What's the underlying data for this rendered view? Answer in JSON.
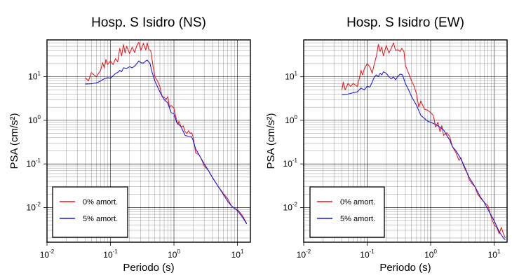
{
  "chart_data": [
    {
      "type": "line",
      "title": "Hosp. S Isidro (NS)",
      "xlabel": "Periodo (s)",
      "ylabel": "PSA (cm/s²)",
      "xscale": "log",
      "yscale": "log",
      "xlim": [
        0.01,
        16
      ],
      "ylim": [
        0.0016,
        70
      ],
      "grid": true,
      "legend_position": "bottom-left",
      "x_ticks": [
        "10⁻²",
        "10⁻¹",
        "10⁰",
        "10¹"
      ],
      "y_ticks": [
        "10⁻²",
        "10⁻¹",
        "10⁰",
        "10¹"
      ],
      "series": [
        {
          "name": "0% amort.",
          "color": "#e8161c",
          "points": [
            [
              0.04,
              9.5
            ],
            [
              0.045,
              8.0
            ],
            [
              0.05,
              12.5
            ],
            [
              0.055,
              11.0
            ],
            [
              0.06,
              10.0
            ],
            [
              0.065,
              12.0
            ],
            [
              0.07,
              14.0
            ],
            [
              0.075,
              21.0
            ],
            [
              0.08,
              16.0
            ],
            [
              0.085,
              25.0
            ],
            [
              0.09,
              19.0
            ],
            [
              0.1,
              23.0
            ],
            [
              0.11,
              19.0
            ],
            [
              0.12,
              26.0
            ],
            [
              0.13,
              22.0
            ],
            [
              0.14,
              45.0
            ],
            [
              0.15,
              30.0
            ],
            [
              0.16,
              55.0
            ],
            [
              0.17,
              35.0
            ],
            [
              0.18,
              50.0
            ],
            [
              0.2,
              34.0
            ],
            [
              0.22,
              48.0
            ],
            [
              0.24,
              36.0
            ],
            [
              0.26,
              52.0
            ],
            [
              0.28,
              62.0
            ],
            [
              0.3,
              40.0
            ],
            [
              0.33,
              58.0
            ],
            [
              0.36,
              41.0
            ],
            [
              0.38,
              60.0
            ],
            [
              0.4,
              42.0
            ],
            [
              0.43,
              40.0
            ],
            [
              0.47,
              17.0
            ],
            [
              0.5,
              10.0
            ],
            [
              0.55,
              8.0
            ],
            [
              0.6,
              6.0
            ],
            [
              0.65,
              3.5
            ],
            [
              0.7,
              3.4
            ],
            [
              0.75,
              3.0
            ],
            [
              0.8,
              3.5
            ],
            [
              0.85,
              2.0
            ],
            [
              0.9,
              2.2
            ],
            [
              1.0,
              1.9
            ],
            [
              1.1,
              1.0
            ],
            [
              1.15,
              0.8
            ],
            [
              1.2,
              0.95
            ],
            [
              1.3,
              0.7
            ],
            [
              1.4,
              0.75
            ],
            [
              1.5,
              0.55
            ],
            [
              1.6,
              0.5
            ],
            [
              1.7,
              0.58
            ],
            [
              1.8,
              0.5
            ],
            [
              1.9,
              0.52
            ],
            [
              2.0,
              0.42
            ],
            [
              2.2,
              0.18
            ],
            [
              2.5,
              0.16
            ],
            [
              2.7,
              0.13
            ],
            [
              3.0,
              0.09
            ],
            [
              3.5,
              0.07
            ],
            [
              4.0,
              0.05
            ],
            [
              5.0,
              0.03
            ],
            [
              6.0,
              0.021
            ],
            [
              7.0,
              0.016
            ],
            [
              8.0,
              0.011
            ],
            [
              9.0,
              0.0095
            ],
            [
              10.0,
              0.009
            ],
            [
              12.0,
              0.0065
            ],
            [
              14.0,
              0.0043
            ]
          ]
        },
        {
          "name": "5% amort.",
          "color": "#1515e6",
          "points": [
            [
              0.04,
              6.8
            ],
            [
              0.05,
              6.9
            ],
            [
              0.06,
              7.2
            ],
            [
              0.07,
              8.0
            ],
            [
              0.08,
              9.0
            ],
            [
              0.09,
              9.5
            ],
            [
              0.1,
              9.3
            ],
            [
              0.11,
              10.5
            ],
            [
              0.12,
              12.0
            ],
            [
              0.13,
              12.5
            ],
            [
              0.14,
              14.0
            ],
            [
              0.15,
              13.0
            ],
            [
              0.16,
              16.0
            ],
            [
              0.18,
              15.5
            ],
            [
              0.2,
              17.0
            ],
            [
              0.22,
              16.0
            ],
            [
              0.24,
              17.5
            ],
            [
              0.26,
              20.0
            ],
            [
              0.28,
              23.0
            ],
            [
              0.3,
              21.0
            ],
            [
              0.33,
              20.5
            ],
            [
              0.36,
              23.0
            ],
            [
              0.38,
              24.0
            ],
            [
              0.42,
              20.0
            ],
            [
              0.45,
              13.0
            ],
            [
              0.5,
              8.0
            ],
            [
              0.6,
              4.5
            ],
            [
              0.7,
              3.0
            ],
            [
              0.8,
              2.5
            ],
            [
              0.9,
              1.5
            ],
            [
              1.0,
              1.4
            ],
            [
              1.1,
              0.9
            ],
            [
              1.2,
              0.8
            ],
            [
              1.3,
              0.7
            ],
            [
              1.5,
              0.45
            ],
            [
              1.7,
              0.43
            ],
            [
              1.9,
              0.42
            ],
            [
              2.0,
              0.35
            ],
            [
              2.2,
              0.22
            ],
            [
              2.5,
              0.16
            ],
            [
              3.0,
              0.1
            ],
            [
              3.5,
              0.07
            ],
            [
              4.0,
              0.05
            ],
            [
              5.0,
              0.03
            ],
            [
              6.0,
              0.02
            ],
            [
              7.0,
              0.014
            ],
            [
              8.0,
              0.011
            ],
            [
              10.0,
              0.0085
            ],
            [
              12.0,
              0.006
            ],
            [
              14.0,
              0.0042
            ]
          ]
        }
      ]
    },
    {
      "type": "line",
      "title": "Hosp. S Isidro (EW)",
      "xlabel": "Periodo (s)",
      "ylabel": "PSA (cm/s²)",
      "xscale": "log",
      "yscale": "log",
      "xlim": [
        0.01,
        16
      ],
      "ylim": [
        0.0016,
        70
      ],
      "grid": true,
      "legend_position": "bottom-left",
      "x_ticks": [
        "10⁻²",
        "10⁻¹",
        "10⁰",
        "10¹"
      ],
      "y_ticks": [
        "10⁻²",
        "10⁻¹",
        "10⁰",
        "10¹"
      ],
      "series": [
        {
          "name": "0% amort.",
          "color": "#e8161c",
          "points": [
            [
              0.04,
              5.0
            ],
            [
              0.042,
              7.5
            ],
            [
              0.045,
              5.0
            ],
            [
              0.05,
              7.0
            ],
            [
              0.055,
              6.0
            ],
            [
              0.06,
              7.0
            ],
            [
              0.065,
              6.5
            ],
            [
              0.07,
              6.0
            ],
            [
              0.075,
              9.0
            ],
            [
              0.08,
              14.0
            ],
            [
              0.085,
              11.0
            ],
            [
              0.09,
              15.0
            ],
            [
              0.1,
              20.0
            ],
            [
              0.11,
              17.0
            ],
            [
              0.12,
              12.0
            ],
            [
              0.13,
              20.0
            ],
            [
              0.14,
              30.0
            ],
            [
              0.15,
              55.0
            ],
            [
              0.16,
              38.0
            ],
            [
              0.17,
              48.0
            ],
            [
              0.18,
              30.0
            ],
            [
              0.2,
              52.0
            ],
            [
              0.22,
              35.0
            ],
            [
              0.24,
              45.0
            ],
            [
              0.26,
              60.0
            ],
            [
              0.28,
              40.0
            ],
            [
              0.3,
              42.0
            ],
            [
              0.33,
              38.0
            ],
            [
              0.35,
              45.0
            ],
            [
              0.38,
              38.0
            ],
            [
              0.4,
              18.0
            ],
            [
              0.45,
              12.0
            ],
            [
              0.5,
              8.0
            ],
            [
              0.55,
              6.0
            ],
            [
              0.6,
              4.0
            ],
            [
              0.65,
              2.0
            ],
            [
              0.7,
              2.8
            ],
            [
              0.75,
              2.2
            ],
            [
              0.8,
              1.8
            ],
            [
              0.9,
              1.7
            ],
            [
              1.0,
              1.5
            ],
            [
              1.1,
              1.3
            ],
            [
              1.2,
              0.7
            ],
            [
              1.3,
              0.9
            ],
            [
              1.4,
              0.55
            ],
            [
              1.5,
              0.75
            ],
            [
              1.6,
              0.45
            ],
            [
              1.8,
              0.52
            ],
            [
              2.0,
              0.42
            ],
            [
              2.2,
              0.25
            ],
            [
              2.5,
              0.18
            ],
            [
              2.8,
              0.12
            ],
            [
              3.0,
              0.14
            ],
            [
              3.3,
              0.09
            ],
            [
              3.5,
              0.075
            ],
            [
              3.8,
              0.06
            ],
            [
              4.0,
              0.045
            ],
            [
              4.5,
              0.035
            ],
            [
              5.0,
              0.03
            ],
            [
              5.5,
              0.02
            ],
            [
              6.0,
              0.017
            ],
            [
              7.0,
              0.013
            ],
            [
              8.0,
              0.011
            ],
            [
              9.0,
              0.006
            ],
            [
              10.0,
              0.004
            ],
            [
              11.0,
              0.0035
            ],
            [
              12.0,
              0.0025
            ],
            [
              13.0,
              0.0035
            ],
            [
              14.0,
              0.0025
            ],
            [
              15.0,
              0.002
            ]
          ]
        },
        {
          "name": "5% amort.",
          "color": "#1515e6",
          "points": [
            [
              0.04,
              3.8
            ],
            [
              0.05,
              4.0
            ],
            [
              0.06,
              4.3
            ],
            [
              0.07,
              4.5
            ],
            [
              0.08,
              5.5
            ],
            [
              0.09,
              5.0
            ],
            [
              0.1,
              6.0
            ],
            [
              0.11,
              5.8
            ],
            [
              0.12,
              7.5
            ],
            [
              0.13,
              10.0
            ],
            [
              0.14,
              11.0
            ],
            [
              0.15,
              10.0
            ],
            [
              0.16,
              12.0
            ],
            [
              0.17,
              11.0
            ],
            [
              0.18,
              13.0
            ],
            [
              0.2,
              12.0
            ],
            [
              0.22,
              10.0
            ],
            [
              0.24,
              9.0
            ],
            [
              0.26,
              10.0
            ],
            [
              0.28,
              8.5
            ],
            [
              0.3,
              10.0
            ],
            [
              0.33,
              11.5
            ],
            [
              0.36,
              11.0
            ],
            [
              0.4,
              7.0
            ],
            [
              0.45,
              5.0
            ],
            [
              0.5,
              3.5
            ],
            [
              0.6,
              2.2
            ],
            [
              0.7,
              1.3
            ],
            [
              0.8,
              1.1
            ],
            [
              0.9,
              0.95
            ],
            [
              1.0,
              0.9
            ],
            [
              1.2,
              0.8
            ],
            [
              1.4,
              0.7
            ],
            [
              1.6,
              0.6
            ],
            [
              1.8,
              0.45
            ],
            [
              2.0,
              0.35
            ],
            [
              2.2,
              0.25
            ],
            [
              2.5,
              0.2
            ],
            [
              3.0,
              0.13
            ],
            [
              3.5,
              0.08
            ],
            [
              4.0,
              0.05
            ],
            [
              5.0,
              0.03
            ],
            [
              6.0,
              0.018
            ],
            [
              7.0,
              0.013
            ],
            [
              8.0,
              0.009
            ],
            [
              10.0,
              0.005
            ],
            [
              12.0,
              0.0028
            ],
            [
              14.0,
              0.002
            ],
            [
              15.0,
              0.0018
            ]
          ]
        }
      ]
    }
  ]
}
